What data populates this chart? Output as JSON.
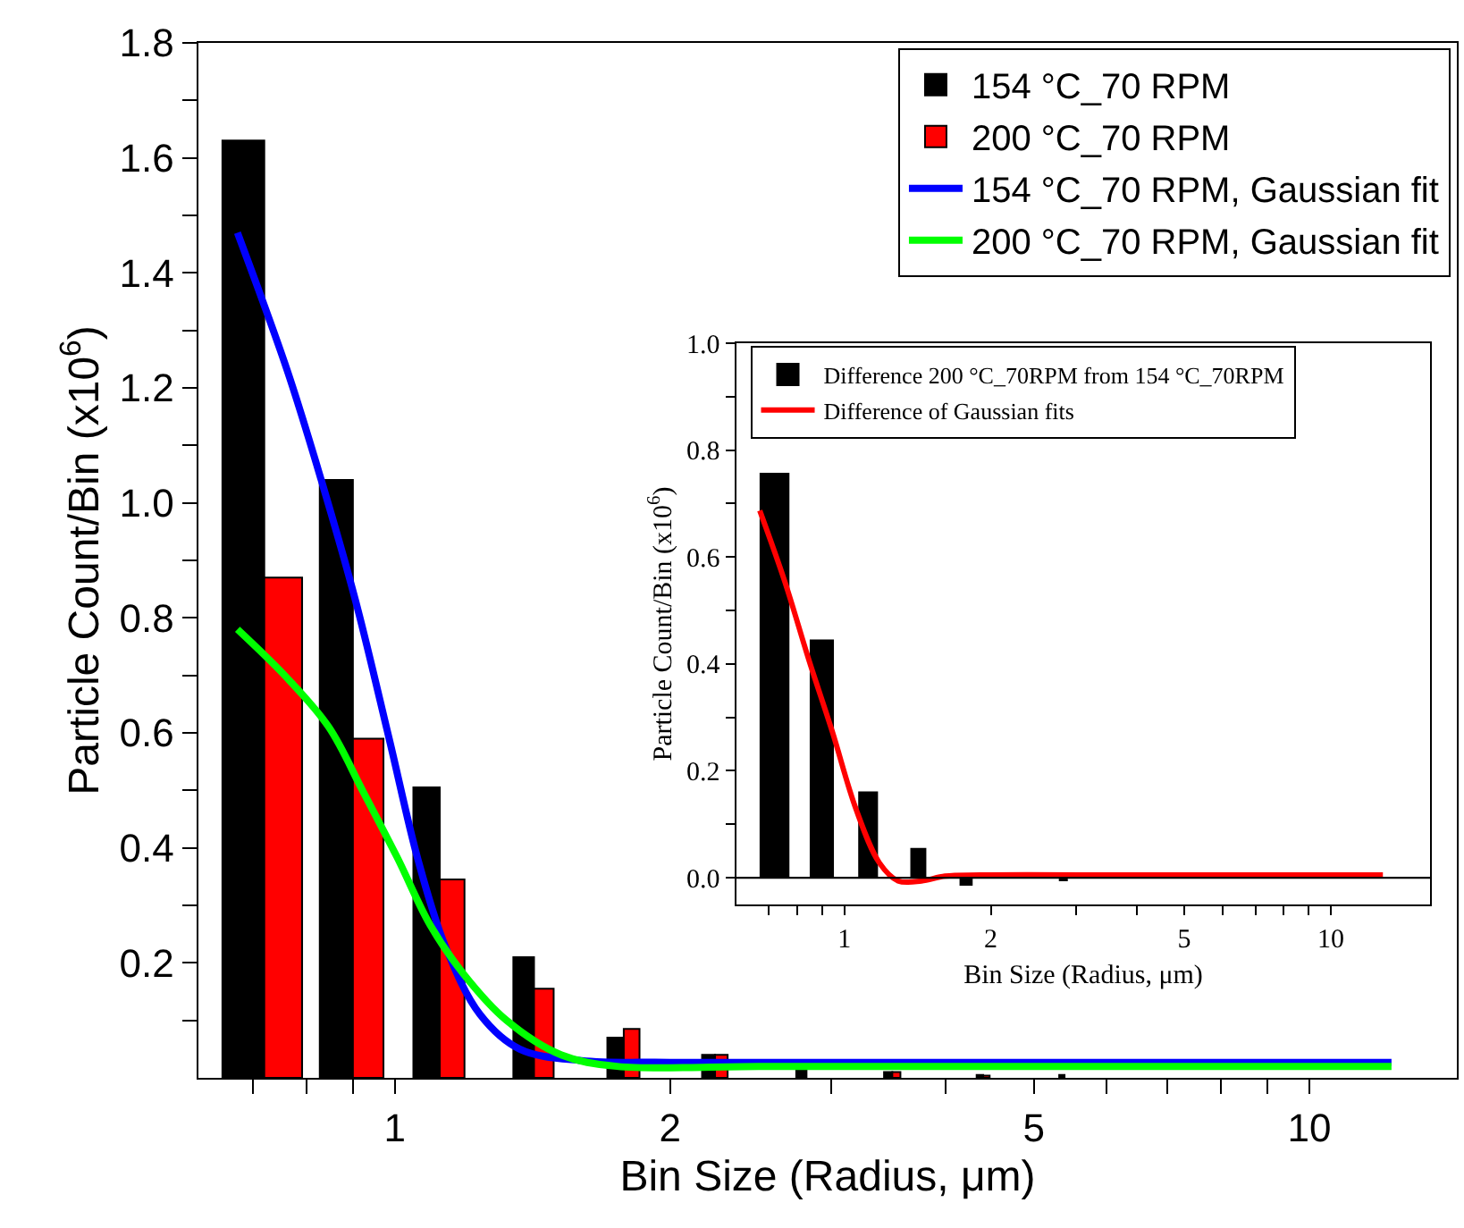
{
  "chart_data": [
    {
      "type": "bar",
      "xlabel": "Bin Size (Radius, μm)",
      "ylabel": "Particle Count/Bin (x10$^{6}$)",
      "log": "x",
      "legend": "top right",
      "x": [
        0.72,
        0.9,
        1.12,
        1.42,
        1.78,
        2.24,
        2.82,
        3.5,
        4.4,
        5.4
      ],
      "xlim": [
        0.61,
        14.5
      ],
      "ylim": [
        0,
        1.8
      ],
      "xticks": [
        {
          "value": 0.7,
          "label": null
        },
        {
          "value": 0.8,
          "label": null
        },
        {
          "value": 0.9,
          "label": null
        },
        1,
        2,
        {
          "value": 3,
          "label": null
        },
        {
          "value": 4,
          "label": null
        },
        5,
        {
          "value": 6,
          "label": null
        },
        {
          "value": 7,
          "label": null
        },
        {
          "value": 8,
          "label": null
        },
        {
          "value": 9,
          "label": null
        },
        10
      ],
      "yticks": [
        {
          "value": 0.1,
          "label": null
        },
        0.2,
        {
          "value": 0.3,
          "label": null
        },
        0.4,
        {
          "value": 0.5,
          "label": null
        },
        0.6,
        {
          "value": 0.7,
          "label": null
        },
        0.8,
        {
          "value": 0.9,
          "label": null
        },
        {
          "value": 1,
          "label": "1.0"
        },
        {
          "value": 1.1,
          "label": null
        },
        1.2,
        {
          "value": 1.3,
          "label": null
        },
        1.4,
        {
          "value": 1.5,
          "label": null
        },
        1.6,
        {
          "value": 1.7,
          "label": null
        },
        1.8
      ],
      "series": [
        {
          "name": "154 °C_70 RPM",
          "color": "#000000",
          "values": [
            1.63,
            1.04,
            0.505,
            0.21,
            0.07,
            0.04,
            0.02,
            0.01,
            0.005,
            0.005
          ]
        },
        {
          "name": "200 °C_70 RPM",
          "color": "#ff0000",
          "values": [
            0.87,
            0.59,
            0.345,
            0.155,
            0.085,
            0.04,
            null,
            0.01,
            0.004,
            null
          ]
        },
        {
          "name": "154 °C_70 RPM, Gaussian fit",
          "type": "line",
          "color": "#0000ff",
          "x": [
            0.673,
            0.763,
            0.831,
            0.906,
            0.986,
            1.06,
            1.135,
            1.24,
            1.37,
            1.6,
            2,
            4,
            8,
            12.3
          ],
          "values": [
            1.47,
            1.23,
            1.04,
            0.83,
            0.59,
            0.38,
            0.23,
            0.11,
            0.05,
            0.03,
            0.027,
            0.027,
            0.027,
            0.027
          ]
        },
        {
          "name": "200 °C_70 RPM, Gaussian fit",
          "type": "line",
          "color": "#00ff00",
          "x": [
            0.673,
            0.763,
            0.847,
            0.922,
            1.005,
            1.094,
            1.19,
            1.325,
            1.52,
            1.75,
            2.5,
            5,
            12.3
          ],
          "values": [
            0.78,
            0.695,
            0.61,
            0.5,
            0.385,
            0.265,
            0.18,
            0.1,
            0.04,
            0.02,
            0.02,
            0.02,
            0.02
          ]
        }
      ]
    },
    {
      "type": "bar",
      "xlabel": "Bin Size (Radius, μm)",
      "ylabel": "Particle Count/Bin (x10$^{6}$)",
      "log": "x",
      "legend": "top",
      "x": [
        0.72,
        0.9,
        1.12,
        1.42,
        1.78,
        2.24,
        2.82
      ],
      "xlim": [
        0.6,
        16
      ],
      "ylim": [
        -0.05,
        1.0
      ],
      "xticks": [
        {
          "value": 0.7,
          "label": null
        },
        {
          "value": 0.8,
          "label": null
        },
        {
          "value": 0.9,
          "label": null
        },
        1,
        2,
        {
          "value": 3,
          "label": null
        },
        {
          "value": 4,
          "label": null
        },
        5,
        {
          "value": 6,
          "label": null
        },
        {
          "value": 7,
          "label": null
        },
        {
          "value": 8,
          "label": null
        },
        {
          "value": 9,
          "label": null
        },
        10
      ],
      "yticks": [
        {
          "value": 0,
          "label": "0.0"
        },
        {
          "value": 0.1,
          "label": null
        },
        0.2,
        {
          "value": 0.3,
          "label": null
        },
        0.4,
        {
          "value": 0.5,
          "label": null
        },
        0.6,
        {
          "value": 0.7,
          "label": null
        },
        0.8,
        {
          "value": 0.9,
          "label": null
        },
        {
          "value": 1,
          "label": "1.0"
        }
      ],
      "ref_lines": [
        {
          "axis": "y",
          "value": 0,
          "color": "#000000"
        }
      ],
      "series": [
        {
          "name": "Difference 200 °C_70RPM from 154 °C_70RPM",
          "color": "#000000",
          "values": [
            0.756,
            0.444,
            0.16,
            0.054,
            -0.013,
            0,
            -0.005
          ]
        },
        {
          "name": "Difference of Gaussian fits",
          "type": "line",
          "color": "#ff0000",
          "x": [
            0.67,
            0.755,
            0.845,
            0.944,
            1.057,
            1.18,
            1.29,
            1.44,
            1.61,
            1.9,
            4,
            8,
            12.8
          ],
          "values": [
            0.687,
            0.553,
            0.408,
            0.274,
            0.128,
            0.028,
            -0.006,
            -0.006,
            0.003,
            0.005,
            0.005,
            0.005,
            0.005
          ]
        }
      ]
    }
  ]
}
